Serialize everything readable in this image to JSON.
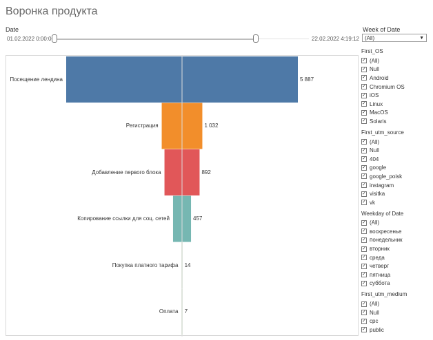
{
  "title": "Воронка продукта",
  "date_filter": {
    "label": "Date",
    "start": "01.02.2022 0:00:00",
    "end": "22.02.2022 4:19:12"
  },
  "week_filter": {
    "label": "Week of Date",
    "selected": "(All)"
  },
  "chart_data": {
    "type": "bar",
    "orientation": "funnel",
    "categories": [
      "Посещение лендина",
      "Регистрация",
      "Добавление первого блока",
      "Копирование ссылки для соц. сетей",
      "Покупка платного тарифа",
      "Оплата"
    ],
    "values": [
      5887,
      1032,
      892,
      457,
      14,
      7
    ],
    "value_labels": [
      "5 887",
      "1 032",
      "892",
      "457",
      "14",
      "7"
    ],
    "colors": [
      "#4e79a7",
      "#f28e2b",
      "#e15759",
      "#76b7b2",
      "#59a14f",
      "#59a14f"
    ]
  },
  "filters": [
    {
      "title": "First_OS",
      "items": [
        "(All)",
        "Null",
        "Android",
        "Chromium OS",
        "iOS",
        "Linux",
        "MacOS",
        "Solaris"
      ]
    },
    {
      "title": "First_utm_source",
      "items": [
        "(All)",
        "Null",
        "404",
        "google",
        "google_poisk",
        "instagram",
        "visitka",
        "vk"
      ]
    },
    {
      "title": "Weekday of Date",
      "items": [
        "(All)",
        "воскресенье",
        "понедельник",
        "вторник",
        "среда",
        "четверг",
        "пятница",
        "суббота"
      ]
    },
    {
      "title": "First_utm_medium",
      "items": [
        "(All)",
        "Null",
        "cpc",
        "public"
      ]
    }
  ]
}
